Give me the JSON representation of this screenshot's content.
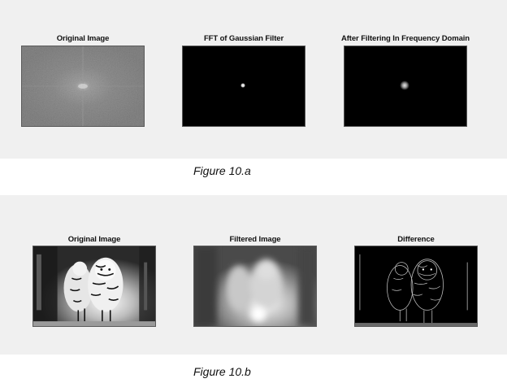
{
  "figure_a": {
    "panels": [
      {
        "title": "Original Image",
        "content": "fft-magnitude-spectrum"
      },
      {
        "title": "FFT of Gaussian Filter",
        "content": "gaussian-filter-spot"
      },
      {
        "title": "After Filtering In Frequency Domain",
        "content": "filtered-spectrum-spot"
      }
    ],
    "caption": "Figure 10.a"
  },
  "figure_b": {
    "panels": [
      {
        "title": "Original Image",
        "content": "tiger-grayscale"
      },
      {
        "title": "Filtered Image",
        "content": "tiger-blurred"
      },
      {
        "title": "Difference",
        "content": "tiger-edges"
      }
    ],
    "caption": "Figure 10.b"
  },
  "colors": {
    "panel_background": "#f0f0f0",
    "page_background": "#ffffff",
    "image_border": "#5a5a5a"
  }
}
